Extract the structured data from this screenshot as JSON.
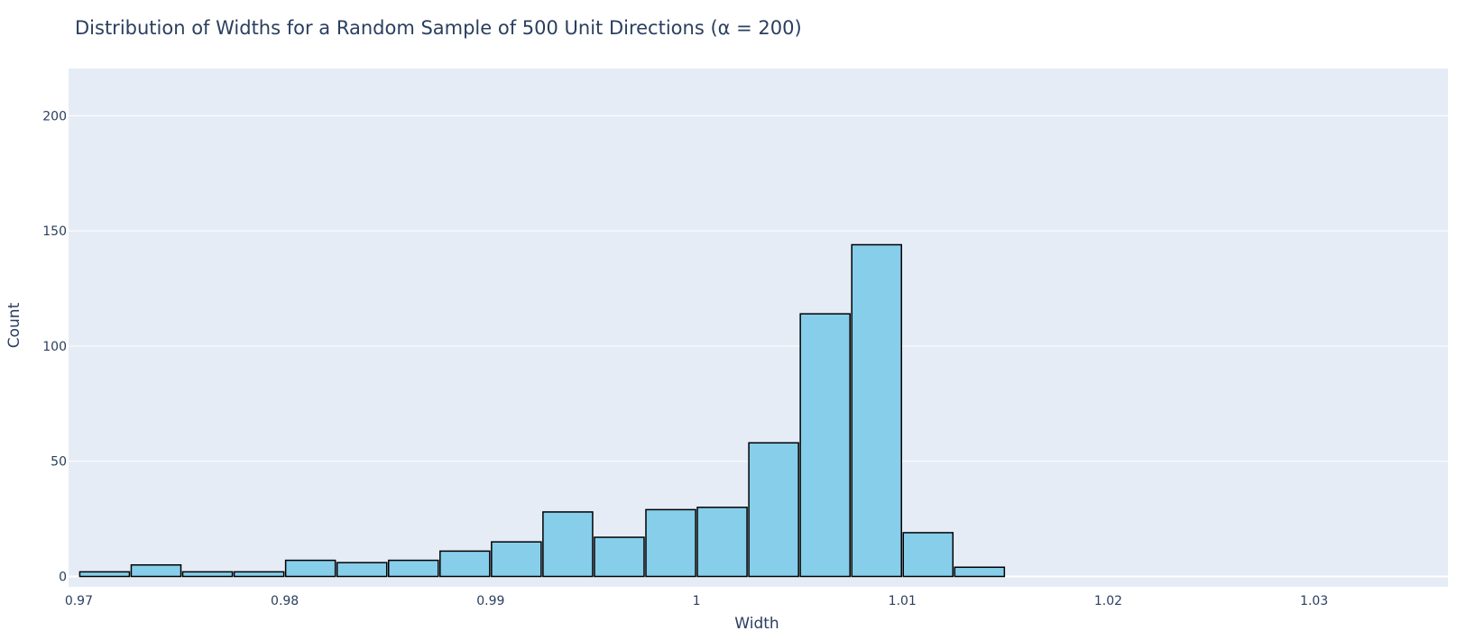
{
  "chart_data": {
    "type": "bar",
    "title": "Distribution of Widths for a Random Sample of 500 Unit Directions (α = 200)",
    "xlabel": "Width",
    "ylabel": "Count",
    "xlim": [
      0.9695,
      1.0365
    ],
    "ylim": [
      -4.5,
      220.5
    ],
    "grid": true,
    "legend": "none",
    "bin_width": 0.0025,
    "x_ticks": [
      {
        "value": 0.97,
        "label": "0.97"
      },
      {
        "value": 0.98,
        "label": "0.98"
      },
      {
        "value": 0.99,
        "label": "0.99"
      },
      {
        "value": 1.0,
        "label": "1"
      },
      {
        "value": 1.01,
        "label": "1.01"
      },
      {
        "value": 1.02,
        "label": "1.02"
      },
      {
        "value": 1.03,
        "label": "1.03"
      }
    ],
    "y_ticks": [
      {
        "value": 0,
        "label": "0"
      },
      {
        "value": 50,
        "label": "50"
      },
      {
        "value": 100,
        "label": "100"
      },
      {
        "value": 150,
        "label": "150"
      },
      {
        "value": 200,
        "label": "200"
      }
    ],
    "bins": [
      {
        "start": 0.97,
        "end": 0.9725,
        "count": 2
      },
      {
        "start": 0.9725,
        "end": 0.975,
        "count": 5
      },
      {
        "start": 0.975,
        "end": 0.9775,
        "count": 2
      },
      {
        "start": 0.9775,
        "end": 0.98,
        "count": 2
      },
      {
        "start": 0.98,
        "end": 0.9825,
        "count": 7
      },
      {
        "start": 0.9825,
        "end": 0.985,
        "count": 6
      },
      {
        "start": 0.985,
        "end": 0.9875,
        "count": 7
      },
      {
        "start": 0.9875,
        "end": 0.99,
        "count": 11
      },
      {
        "start": 0.99,
        "end": 0.9925,
        "count": 15
      },
      {
        "start": 0.9925,
        "end": 0.995,
        "count": 28
      },
      {
        "start": 0.995,
        "end": 0.9975,
        "count": 17
      },
      {
        "start": 0.9975,
        "end": 1.0,
        "count": 29
      },
      {
        "start": 1.0,
        "end": 1.0025,
        "count": 30
      },
      {
        "start": 1.0025,
        "end": 1.005,
        "count": 58
      },
      {
        "start": 1.005,
        "end": 1.0075,
        "count": 114
      },
      {
        "start": 1.0075,
        "end": 1.01,
        "count": 144
      },
      {
        "start": 1.01,
        "end": 1.0125,
        "count": 19
      },
      {
        "start": 1.0125,
        "end": 1.015,
        "count": 4
      }
    ],
    "colors": {
      "bar_fill": "#87ceeb",
      "bar_outline": "#000000",
      "plot_background": "#e5ecf6",
      "grid": "#ffffff",
      "text": "#2a3f5f"
    }
  }
}
